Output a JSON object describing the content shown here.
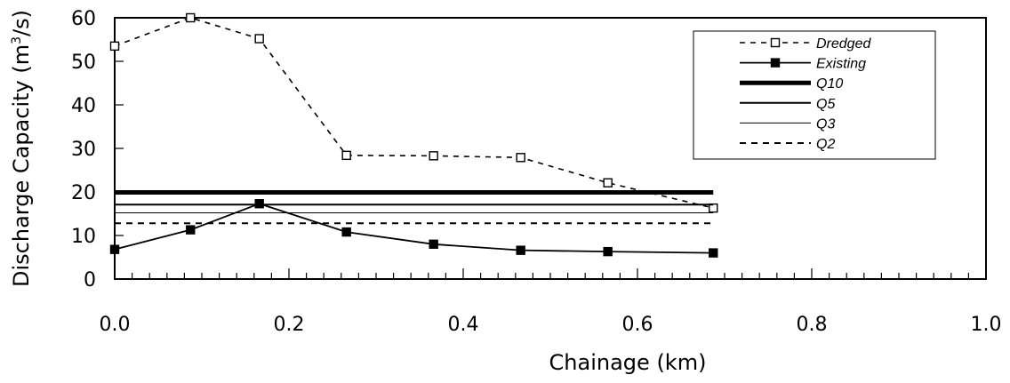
{
  "chart_data": {
    "type": "line",
    "xlabel": "Chainage (km)",
    "ylabel_main": "Discharge Capacity (m",
    "ylabel_sup": "3",
    "ylabel_tail": "/s)",
    "xlim": [
      0.0,
      1.0
    ],
    "ylim": [
      0,
      60
    ],
    "x_ticks": [
      "0.0",
      "0.2",
      "0.4",
      "0.6",
      "0.8",
      "1.0"
    ],
    "y_ticks": [
      "0",
      "10",
      "20",
      "30",
      "40",
      "50",
      "60"
    ],
    "x_tick_values": [
      0.0,
      0.2,
      0.4,
      0.6,
      0.8,
      1.0
    ],
    "y_tick_values": [
      0,
      10,
      20,
      30,
      40,
      50,
      60
    ],
    "grid": false,
    "legend_position": "top-right",
    "series": [
      {
        "name": "Dredged",
        "style": "dashed-open-square",
        "color": "#000000",
        "x": [
          0.0,
          0.087,
          0.166,
          0.266,
          0.366,
          0.466,
          0.566,
          0.687
        ],
        "y": [
          53.5,
          60.0,
          55.2,
          28.4,
          28.3,
          27.9,
          22.1,
          16.3
        ]
      },
      {
        "name": "Existing",
        "style": "solid-filled-square",
        "color": "#000000",
        "x": [
          0.0,
          0.087,
          0.166,
          0.266,
          0.366,
          0.466,
          0.566,
          0.687
        ],
        "y": [
          6.8,
          11.3,
          17.3,
          10.8,
          8.0,
          6.6,
          6.3,
          6.0
        ]
      },
      {
        "name": "Q10",
        "style": "thick-solid",
        "color": "#000000",
        "x": [
          0.0,
          0.687
        ],
        "y": [
          19.9,
          19.9
        ]
      },
      {
        "name": "Q5",
        "style": "solid",
        "color": "#000000",
        "x": [
          0.0,
          0.687
        ],
        "y": [
          17.1,
          17.1
        ]
      },
      {
        "name": "Q3",
        "style": "thin-solid",
        "color": "#000000",
        "x": [
          0.0,
          0.687
        ],
        "y": [
          15.2,
          15.2
        ]
      },
      {
        "name": "Q2",
        "style": "dashed",
        "color": "#000000",
        "x": [
          0.0,
          0.687
        ],
        "y": [
          12.8,
          12.8
        ]
      }
    ]
  }
}
